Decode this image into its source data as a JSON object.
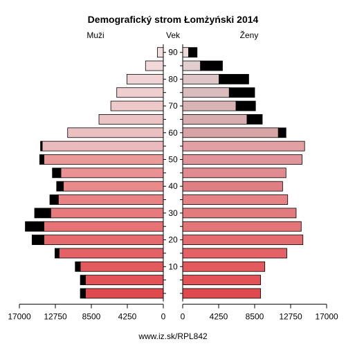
{
  "chart_data": {
    "type": "bar",
    "orientation": "horizontal-population-pyramid",
    "title": "Demografický strom Łomżyński 2014",
    "left_label": "Muži",
    "center_label": "Vek",
    "right_label": "Ženy",
    "source": "www.iz.sk/RPL842",
    "x_ticks_left": [
      "17000",
      "12750",
      "8500",
      "4250",
      "0"
    ],
    "x_ticks_right": [
      "0",
      "4250",
      "8500",
      "12750",
      "17000"
    ],
    "x_max": 17000,
    "y_ticks": [
      "10",
      "20",
      "30",
      "40",
      "50",
      "60",
      "70",
      "80",
      "90"
    ],
    "age_groups": [
      "0-4",
      "5-9",
      "10-14",
      "15-19",
      "20-24",
      "25-29",
      "30-34",
      "35-39",
      "40-44",
      "45-49",
      "50-54",
      "55-59",
      "60-64",
      "65-69",
      "70-74",
      "75-79",
      "80-84",
      "85-89",
      "90+"
    ],
    "series": [
      {
        "side": "male",
        "values": [
          9200,
          9200,
          9800,
          12300,
          14100,
          14100,
          13300,
          12400,
          11800,
          12100,
          14100,
          14300,
          11300,
          7600,
          6200,
          5500,
          4300,
          2100,
          700
        ]
      },
      {
        "side": "male-excess",
        "values": [
          600,
          600,
          600,
          500,
          1400,
          2200,
          1900,
          1000,
          800,
          1000,
          500,
          200,
          0,
          0,
          0,
          0,
          0,
          0,
          0
        ]
      },
      {
        "side": "female",
        "values": [
          9200,
          9200,
          9700,
          12300,
          14200,
          14000,
          13400,
          12400,
          11800,
          12200,
          14100,
          14400,
          11300,
          7600,
          6300,
          5500,
          4300,
          2100,
          700
        ]
      },
      {
        "side": "female-excess",
        "values": [
          0,
          0,
          0,
          0,
          0,
          0,
          0,
          0,
          0,
          0,
          0,
          0,
          900,
          1800,
          2300,
          3000,
          3500,
          2600,
          1000
        ]
      }
    ],
    "colors": {
      "male": [
        "#e04a4f",
        "#e25257",
        "#e35a5e",
        "#e46266",
        "#e56a6d",
        "#e67275",
        "#e77a7c",
        "#e88284",
        "#e98a8b",
        "#ea9293",
        "#eb9a9a",
        "#ebbabc",
        "#ecbfc0",
        "#edc4c5",
        "#eec9ca",
        "#efced0",
        "#f0d3d5",
        "#f1d8da",
        "#f2dddf"
      ],
      "female": [
        "#e04a4f",
        "#e25257",
        "#e35a5e",
        "#e46266",
        "#e36c70",
        "#e37477",
        "#e27b7e",
        "#e48286",
        "#df7f84",
        "#e08b8f",
        "#e1959a",
        "#e3a0a4",
        "#d7a3a5",
        "#d8adaf",
        "#d8b4b6",
        "#dbbcbe",
        "#dec5c7",
        "#e3cecf",
        "#ebd8d9"
      ],
      "excess": "#000000"
    }
  }
}
